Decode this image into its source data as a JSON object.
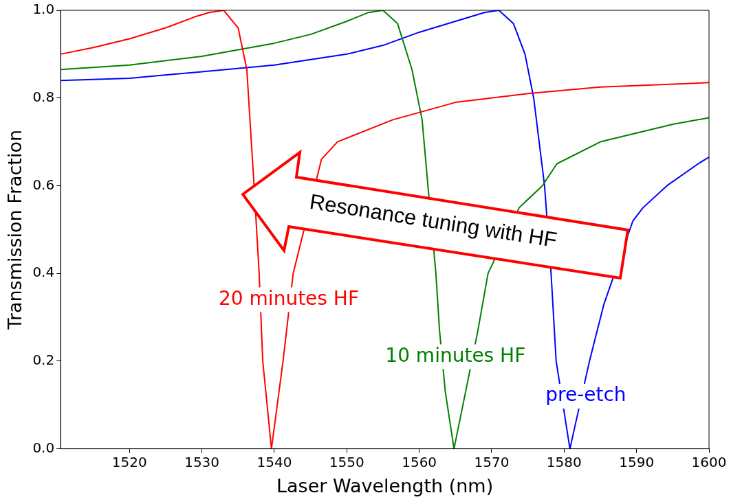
{
  "chart_data": {
    "type": "line",
    "xlabel": "Laser Wavelength (nm)",
    "ylabel": "Transmission Fraction",
    "xlim": [
      1510.5,
      1600
    ],
    "ylim": [
      0,
      1
    ],
    "xticks": [
      1520,
      1530,
      1540,
      1550,
      1560,
      1570,
      1580,
      1590,
      1600
    ],
    "yticks": [
      {
        "value": 0,
        "label": "0.0"
      },
      {
        "value": 0.2,
        "label": "0.2"
      },
      {
        "value": 0.4,
        "label": "0.4"
      },
      {
        "value": 0.6,
        "label": "0.6"
      },
      {
        "value": 0.8,
        "label": "0.8"
      },
      {
        "value": 1,
        "label": "1.0"
      }
    ],
    "grid": false,
    "legend": false,
    "marker": "none",
    "line_style": "solid",
    "annotations": [
      "Resonance tuning with HF"
    ],
    "series": [
      {
        "name": "20 minutes HF",
        "color": "#ff0000",
        "x": [
          1510.5,
          1515,
          1520,
          1525,
          1529,
          1531,
          1533,
          1535,
          1536.2,
          1537.2,
          1537.9,
          1538.4,
          1539.6,
          1541.2,
          1542.6,
          1546.5,
          1548.7,
          1556.3,
          1565,
          1575,
          1585,
          1600
        ],
        "values": [
          0.9,
          0.915,
          0.935,
          0.96,
          0.985,
          0.995,
          1,
          0.96,
          0.865,
          0.6,
          0.4,
          0.2,
          0,
          0.2,
          0.4,
          0.66,
          0.7,
          0.75,
          0.79,
          0.81,
          0.825,
          0.835
        ]
      },
      {
        "name": "10 minutes HF",
        "color": "#008000",
        "x": [
          1510.5,
          1520,
          1530,
          1540,
          1545,
          1550,
          1553,
          1555,
          1557,
          1559,
          1560.4,
          1561.2,
          1562.3,
          1562.8,
          1563.6,
          1564.8,
          1566.4,
          1568.1,
          1569.5,
          1573.8,
          1577,
          1579,
          1585,
          1590,
          1595,
          1600
        ],
        "values": [
          0.865,
          0.875,
          0.895,
          0.925,
          0.945,
          0.975,
          0.995,
          1,
          0.97,
          0.865,
          0.75,
          0.6,
          0.4,
          0.27,
          0.13,
          0,
          0.13,
          0.27,
          0.4,
          0.55,
          0.6,
          0.65,
          0.7,
          0.72,
          0.74,
          0.755
        ]
      },
      {
        "name": "pre-etch",
        "color": "#0000ff",
        "x": [
          1510.5,
          1520,
          1530,
          1540,
          1550,
          1555,
          1560,
          1565,
          1569,
          1571,
          1573,
          1574.6,
          1575.8,
          1577.3,
          1578.2,
          1578.9,
          1580.8,
          1583.5,
          1585.5,
          1589.5,
          1590.9,
          1594.2,
          1598.5,
          1600
        ],
        "values": [
          0.84,
          0.845,
          0.86,
          0.875,
          0.9,
          0.92,
          0.95,
          0.975,
          0.995,
          1,
          0.97,
          0.9,
          0.8,
          0.6,
          0.4,
          0.2,
          0,
          0.2,
          0.33,
          0.52,
          0.55,
          0.6,
          0.65,
          0.665
        ]
      }
    ]
  }
}
